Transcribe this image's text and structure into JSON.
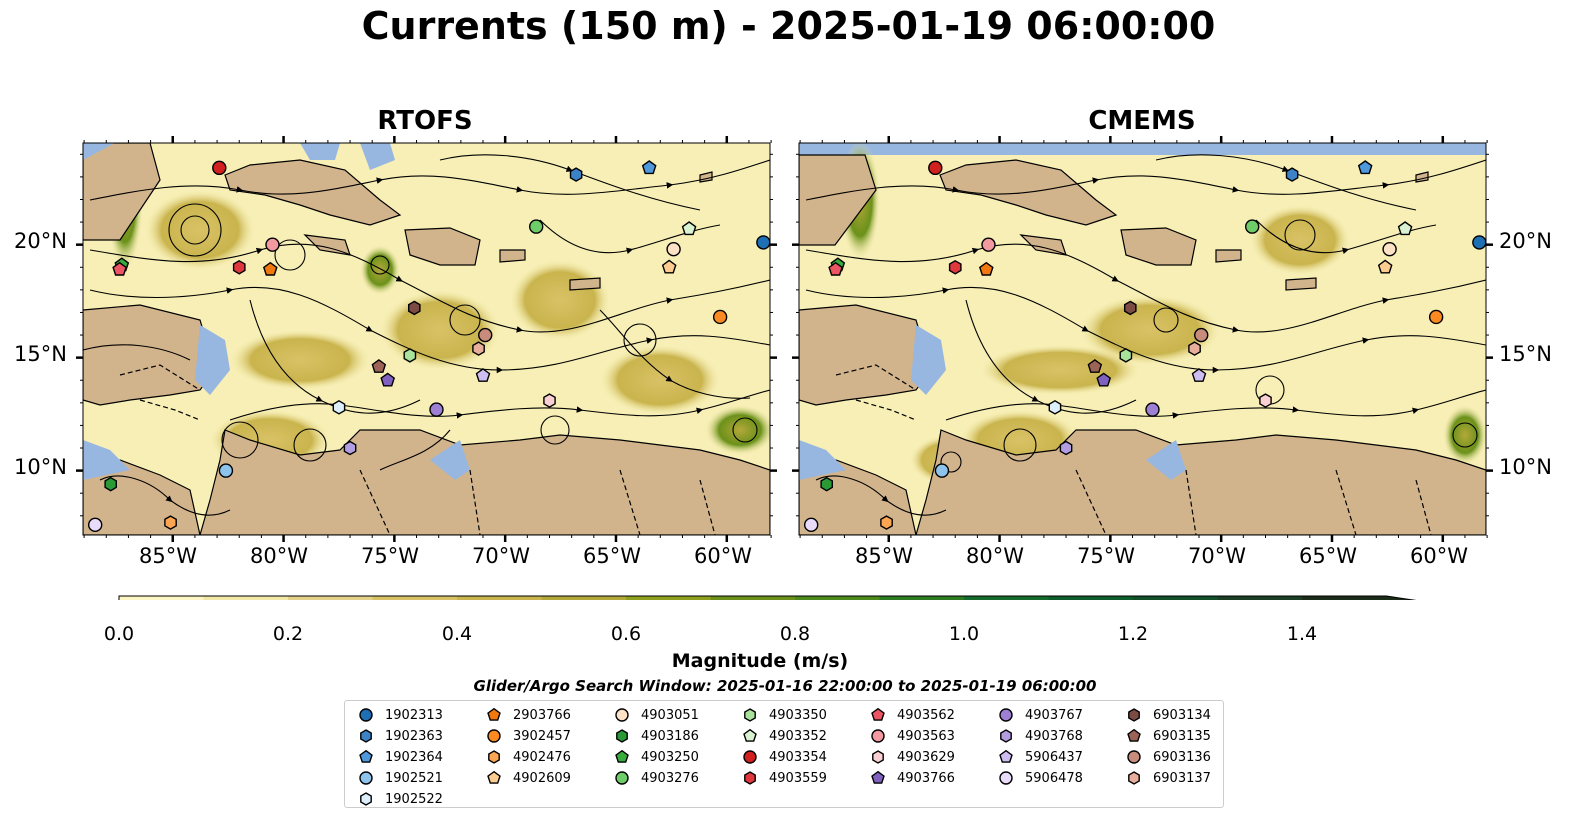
{
  "title": "Currents (150 m) - 2025-01-19 06:00:00",
  "panels": [
    {
      "title": "RTOFS",
      "x_ticks": [
        "85°W",
        "80°W",
        "75°W",
        "70°W",
        "65°W",
        "60°W"
      ],
      "y_ticks": [
        "20°N",
        "15°N",
        "10°N"
      ],
      "y_ticks_side": "left"
    },
    {
      "title": "CMEMS",
      "x_ticks": [
        "85°W",
        "80°W",
        "75°W",
        "70°W",
        "65°W",
        "60°W"
      ],
      "y_ticks": [
        "20°N",
        "15°N",
        "10°N"
      ],
      "y_ticks_side": "right"
    }
  ],
  "colorbar": {
    "label": "Magnitude (m/s)",
    "ticks": [
      "0.0",
      "0.2",
      "0.4",
      "0.6",
      "0.8",
      "1.0",
      "1.2",
      "1.4"
    ],
    "levels": [
      0,
      0.1,
      0.2,
      0.3,
      0.4,
      0.5,
      0.6,
      0.7,
      0.8,
      0.9,
      1.0,
      1.1,
      1.2,
      1.3,
      1.4,
      1.5
    ],
    "extend": "max",
    "colors": [
      "#fbf6c4",
      "#f1e7a6",
      "#e4d28a",
      "#d9c266",
      "#c9b44d",
      "#b3a83a",
      "#8fa01f",
      "#6b911a",
      "#4d8a1e",
      "#2e7c21",
      "#156b2c",
      "#0d5e2b",
      "#12502b",
      "#1a3f25",
      "#1b2d19"
    ]
  },
  "map_colors": {
    "land": "#d2b48c",
    "ocean_shallow": "#97b7e0",
    "speed_low": "#f7efb6"
  },
  "search_window": "Glider/Argo Search Window: 2025-01-16 22:00:00 to 2025-01-19 06:00:00",
  "legend": [
    {
      "id": "1902313",
      "marker": "circle",
      "color": "#1f6fb4"
    },
    {
      "id": "1902363",
      "marker": "hexagon",
      "color": "#3c82c6"
    },
    {
      "id": "1902364",
      "marker": "pentagon",
      "color": "#4f98dc"
    },
    {
      "id": "1902521",
      "marker": "circle",
      "color": "#8ec3ec"
    },
    {
      "id": "1902522",
      "marker": "hexagon",
      "color": "#dceffb"
    },
    {
      "id": "2903766",
      "marker": "pentagon",
      "color": "#f0780f"
    },
    {
      "id": "3902457",
      "marker": "circle",
      "color": "#fb8a23"
    },
    {
      "id": "4902476",
      "marker": "hexagon",
      "color": "#fca553"
    },
    {
      "id": "4902609",
      "marker": "pentagon",
      "color": "#fdcc91"
    },
    {
      "id": "4903051",
      "marker": "circle",
      "color": "#fde2c6"
    },
    {
      "id": "4903186",
      "marker": "hexagon",
      "color": "#2a9a37"
    },
    {
      "id": "4903250",
      "marker": "pentagon",
      "color": "#37ac3c"
    },
    {
      "id": "4903276",
      "marker": "circle",
      "color": "#6fcd69"
    },
    {
      "id": "4903350",
      "marker": "hexagon",
      "color": "#a8e29b"
    },
    {
      "id": "4903352",
      "marker": "pentagon",
      "color": "#d9f3d2"
    },
    {
      "id": "4903354",
      "marker": "circle",
      "color": "#d0201f"
    },
    {
      "id": "4903559",
      "marker": "hexagon",
      "color": "#e0383c"
    },
    {
      "id": "4903562",
      "marker": "pentagon",
      "color": "#ec5563"
    },
    {
      "id": "4903563",
      "marker": "circle",
      "color": "#f39aa0"
    },
    {
      "id": "4903629",
      "marker": "hexagon",
      "color": "#fbd0d2"
    },
    {
      "id": "4903766",
      "marker": "pentagon",
      "color": "#8061bf"
    },
    {
      "id": "4903767",
      "marker": "circle",
      "color": "#9d7fd3"
    },
    {
      "id": "4903768",
      "marker": "hexagon",
      "color": "#b29de0"
    },
    {
      "id": "5906437",
      "marker": "pentagon",
      "color": "#cdbdf0"
    },
    {
      "id": "5906478",
      "marker": "circle",
      "color": "#e8dcfa"
    },
    {
      "id": "6903134",
      "marker": "hexagon",
      "color": "#7b4b44"
    },
    {
      "id": "6903135",
      "marker": "pentagon",
      "color": "#9b6457"
    },
    {
      "id": "6903136",
      "marker": "circle",
      "color": "#c88c7d"
    },
    {
      "id": "6903137",
      "marker": "hexagon",
      "color": "#e7ae9c"
    }
  ],
  "platform_positions": [
    {
      "id": "1902313",
      "lon": -58.3,
      "lat": 20.1
    },
    {
      "id": "1902363",
      "lon": -66.8,
      "lat": 23.1
    },
    {
      "id": "1902364",
      "lon": -63.5,
      "lat": 23.4
    },
    {
      "id": "1902521",
      "lon": -82.6,
      "lat": 10.0
    },
    {
      "id": "1902522",
      "lon": -77.5,
      "lat": 12.8
    },
    {
      "id": "2903766",
      "lon": -80.6,
      "lat": 18.9
    },
    {
      "id": "3902457",
      "lon": -60.3,
      "lat": 16.8
    },
    {
      "id": "4902476",
      "lon": -85.1,
      "lat": 7.7
    },
    {
      "id": "4902609",
      "lon": -62.6,
      "lat": 19.0
    },
    {
      "id": "4903051",
      "lon": -62.4,
      "lat": 19.8
    },
    {
      "id": "4903186",
      "lon": -87.8,
      "lat": 9.4
    },
    {
      "id": "4903250",
      "lon": -87.3,
      "lat": 19.1
    },
    {
      "id": "4903276",
      "lon": -68.6,
      "lat": 20.8
    },
    {
      "id": "4903350",
      "lon": -74.3,
      "lat": 15.1
    },
    {
      "id": "4903352",
      "lon": -61.7,
      "lat": 20.7
    },
    {
      "id": "4903354",
      "lon": -82.9,
      "lat": 23.4
    },
    {
      "id": "4903559",
      "lon": -82.0,
      "lat": 19.0
    },
    {
      "id": "4903562",
      "lon": -87.4,
      "lat": 18.9
    },
    {
      "id": "4903563",
      "lon": -80.5,
      "lat": 20.0
    },
    {
      "id": "4903629",
      "lon": -68.0,
      "lat": 13.1
    },
    {
      "id": "4903766",
      "lon": -75.3,
      "lat": 14.0
    },
    {
      "id": "4903767",
      "lon": -73.1,
      "lat": 12.7
    },
    {
      "id": "4903768",
      "lon": -77.0,
      "lat": 11.0
    },
    {
      "id": "5906437",
      "lon": -71.0,
      "lat": 14.2
    },
    {
      "id": "5906478",
      "lon": -88.5,
      "lat": 7.6
    },
    {
      "id": "6903134",
      "lon": -74.1,
      "lat": 17.2
    },
    {
      "id": "6903135",
      "lon": -75.7,
      "lat": 14.6
    },
    {
      "id": "6903136",
      "lon": -70.9,
      "lat": 16.0
    },
    {
      "id": "6903137",
      "lon": -71.2,
      "lat": 15.4
    }
  ]
}
